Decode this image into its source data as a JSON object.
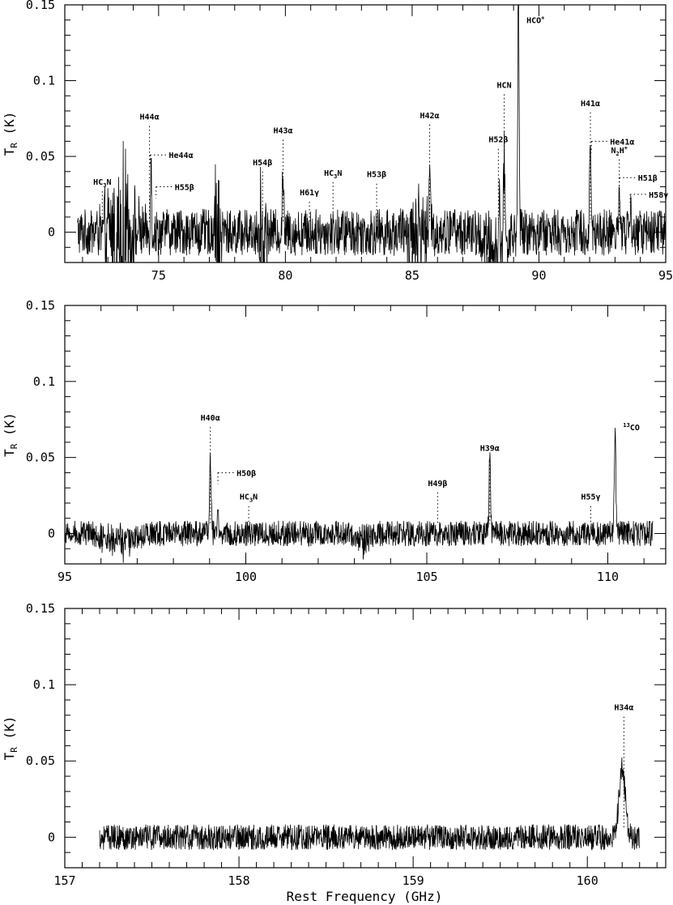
{
  "figure": {
    "xlabel": "Rest Frequency (GHz)",
    "colors": {
      "line": "#000000",
      "background": "#ffffff"
    }
  },
  "chart_data": [
    {
      "type": "line",
      "ylabel_main": "T",
      "ylabel_sub": "R",
      "ylabel_unit": " (K)",
      "xlim": [
        71.3,
        95.0
      ],
      "ylim": [
        -0.02,
        0.15
      ],
      "xticks": [
        "75",
        "80",
        "85",
        "90",
        "95"
      ],
      "yticks": [
        "0",
        "0.05",
        "0.1",
        "0.15"
      ],
      "grid": false,
      "noise": 0.011,
      "spectrum_range": [
        71.8,
        95.0
      ],
      "features": [
        {
          "x": 73.5,
          "y": 0.03,
          "w": 0.6
        },
        {
          "x": 74.7,
          "y": 0.047,
          "w": 0.03
        },
        {
          "x": 77.3,
          "y": 0.03,
          "w": 0.15
        },
        {
          "x": 79.1,
          "y": 0.025,
          "w": 0.15
        },
        {
          "x": 79.9,
          "y": 0.04,
          "w": 0.04
        },
        {
          "x": 85.2,
          "y": 0.015,
          "w": 0.5
        },
        {
          "x": 85.7,
          "y": 0.04,
          "w": 0.04
        },
        {
          "x": 88.3,
          "y": -0.01,
          "w": 0.6
        },
        {
          "x": 88.45,
          "y": 0.02,
          "w": 0.04
        },
        {
          "x": 88.63,
          "y": 0.06,
          "w": 0.04
        },
        {
          "x": 89.19,
          "y": 0.158,
          "w": 0.04
        },
        {
          "x": 92.03,
          "y": 0.065,
          "w": 0.04
        },
        {
          "x": 93.17,
          "y": 0.025,
          "w": 0.04
        },
        {
          "x": 93.6,
          "y": 0.015,
          "w": 0.05
        }
      ],
      "lines": [
        {
          "label": "HC3N",
          "base": "HC",
          "sub": "3",
          "rest": "N",
          "x": 72.78,
          "ytop": 0.027,
          "side": "top"
        },
        {
          "label": "H44α",
          "x": 74.64,
          "ytop": 0.07,
          "side": "top"
        },
        {
          "label": "He44α",
          "x": 74.67,
          "ytop": 0.051,
          "side": "right"
        },
        {
          "label": "H55β",
          "x": 74.9,
          "ytop": 0.03,
          "side": "right"
        },
        {
          "label": "H54β",
          "x": 79.1,
          "ytop": 0.04,
          "side": "top"
        },
        {
          "label": "H43α",
          "x": 79.91,
          "ytop": 0.061,
          "side": "top"
        },
        {
          "label": "H61γ",
          "x": 80.95,
          "ytop": 0.02,
          "side": "top"
        },
        {
          "label": "HC3N",
          "base": "HC",
          "sub": "3",
          "rest": "N",
          "x": 81.88,
          "ytop": 0.033,
          "side": "top"
        },
        {
          "label": "H53β",
          "x": 83.6,
          "ytop": 0.032,
          "side": "top"
        },
        {
          "label": "H42α",
          "x": 85.69,
          "ytop": 0.071,
          "side": "top"
        },
        {
          "label": "H52β",
          "x": 88.4,
          "ytop": 0.055,
          "side": "top"
        },
        {
          "label": "HCN",
          "x": 88.63,
          "ytop": 0.091,
          "side": "top"
        },
        {
          "label": "HCO+",
          "base": "HCO",
          "sup": "+",
          "x": 89.19,
          "ytop": 0.14,
          "side": "upright"
        },
        {
          "label": "H41α",
          "x": 92.03,
          "ytop": 0.079,
          "side": "top"
        },
        {
          "label": "He41α",
          "x": 92.07,
          "ytop": 0.06,
          "side": "right"
        },
        {
          "label": "N2H+",
          "base": "N",
          "sub": "2",
          "rest": "H",
          "sup": "+",
          "x": 93.17,
          "ytop": 0.048,
          "side": "top"
        },
        {
          "label": "H51β",
          "x": 93.17,
          "ytop": 0.036,
          "side": "right"
        },
        {
          "label": "H58γ",
          "x": 93.6,
          "ytop": 0.025,
          "side": "right"
        }
      ]
    },
    {
      "type": "line",
      "ylabel_main": "T",
      "ylabel_sub": "R",
      "ylabel_unit": " (K)",
      "xlim": [
        95.0,
        111.6
      ],
      "ylim": [
        -0.02,
        0.15
      ],
      "xticks": [
        "95",
        "100",
        "105",
        "110"
      ],
      "yticks": [
        "0",
        "0.05",
        "0.1",
        "0.15"
      ],
      "grid": false,
      "noise": 0.006,
      "spectrum_range": [
        95.0,
        111.25
      ],
      "features": [
        {
          "x": 96.5,
          "y": -0.006,
          "w": 0.45
        },
        {
          "x": 99.02,
          "y": 0.05,
          "w": 0.03
        },
        {
          "x": 99.23,
          "y": 0.012,
          "w": 0.03
        },
        {
          "x": 103.2,
          "y": -0.004,
          "w": 0.2
        },
        {
          "x": 106.74,
          "y": 0.049,
          "w": 0.03
        },
        {
          "x": 110.2,
          "y": 0.069,
          "w": 0.03
        }
      ],
      "lines": [
        {
          "label": "H40α",
          "x": 99.02,
          "ytop": 0.07,
          "side": "top"
        },
        {
          "label": "H50β",
          "x": 99.23,
          "ytop": 0.04,
          "side": "right"
        },
        {
          "label": "HC3N",
          "base": "HC",
          "sub": "3",
          "rest": "N",
          "x": 100.08,
          "ytop": 0.018,
          "side": "top"
        },
        {
          "label": "H49β",
          "x": 105.3,
          "ytop": 0.027,
          "side": "top"
        },
        {
          "label": "H39α",
          "x": 106.74,
          "ytop": 0.05,
          "side": "top"
        },
        {
          "label": "H55γ",
          "x": 109.53,
          "ytop": 0.018,
          "side": "top"
        },
        {
          "label": "13CO",
          "base": "CO",
          "pre": "13",
          "x": 110.2,
          "ytop": 0.07,
          "side": "upright"
        }
      ]
    },
    {
      "type": "line",
      "ylabel_main": "T",
      "ylabel_sub": "R",
      "ylabel_unit": " (K)",
      "xlim": [
        157.0,
        160.45
      ],
      "ylim": [
        -0.02,
        0.15
      ],
      "xticks": [
        "157",
        "158",
        "159",
        "160"
      ],
      "yticks": [
        "0",
        "0.05",
        "0.1",
        "0.15"
      ],
      "grid": false,
      "noise": 0.006,
      "spectrum_range": [
        157.2,
        160.3
      ],
      "features": [
        {
          "x": 160.2,
          "y": 0.047,
          "w": 0.025
        }
      ],
      "lines": [
        {
          "label": "H34α",
          "x": 160.21,
          "ytop": 0.079,
          "side": "top"
        }
      ]
    }
  ]
}
